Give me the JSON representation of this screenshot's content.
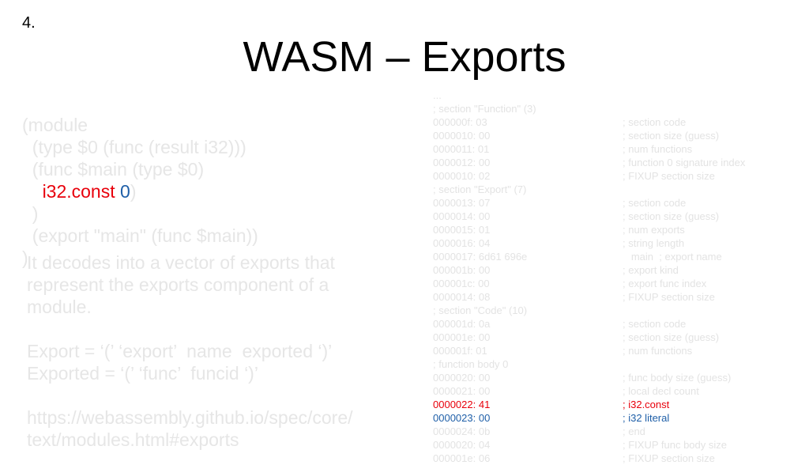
{
  "slide_number": "4.",
  "title": "WASM – Exports",
  "left": {
    "code": [
      "(module",
      "  (type $0 (func (result i32)))",
      "  (func $main (type $0)",
      "    ",
      "  )",
      "  (export \"main\" (func $main))",
      ")"
    ],
    "highlight_const": "i32.const",
    "highlight_zero": "0",
    "highlight_paren": ")",
    "paragraph1": [
      "It decodes into a vector of exports that",
      "represent the exports component of a",
      "module."
    ],
    "grammar": [
      "Export = ‘(’ ‘export’  name  exported ‘)’",
      "Exported = ‘(’ ‘func’  funcid ‘)’"
    ],
    "link": [
      "https://webassembly.github.io/spec/core/",
      "text/modules.html#exports"
    ]
  },
  "right": {
    "rows": [
      {
        "addr": "...",
        "cmt": ""
      },
      {
        "addr": "; section \"Function\" (3)",
        "cmt": ""
      },
      {
        "addr": "000000f: 03",
        "cmt": "; section code"
      },
      {
        "addr": "0000010: 00",
        "cmt": "; section size (guess)"
      },
      {
        "addr": "0000011: 01",
        "cmt": "; num functions"
      },
      {
        "addr": "0000012: 00",
        "cmt": "; function 0 signature index"
      },
      {
        "addr": "0000010: 02",
        "cmt": "; FIXUP section size"
      },
      {
        "addr": "; section \"Export\" (7)",
        "cmt": ""
      },
      {
        "addr": "0000013: 07",
        "cmt": "; section code"
      },
      {
        "addr": "0000014: 00",
        "cmt": "; section size (guess)"
      },
      {
        "addr": "0000015: 01",
        "cmt": "; num exports"
      },
      {
        "addr": "0000016: 04",
        "cmt": "; string length"
      },
      {
        "addr": "0000017: 6d61 696e",
        "cmt": "   main  ; export name"
      },
      {
        "addr": "000001b: 00",
        "cmt": "; export kind"
      },
      {
        "addr": "000001c: 00",
        "cmt": "; export func index"
      },
      {
        "addr": "0000014: 08",
        "cmt": "; FIXUP section size"
      },
      {
        "addr": "; section \"Code\" (10)",
        "cmt": ""
      },
      {
        "addr": "000001d: 0a",
        "cmt": "; section code"
      },
      {
        "addr": "000001e: 00",
        "cmt": "; section size (guess)"
      },
      {
        "addr": "000001f: 01",
        "cmt": "; num functions"
      },
      {
        "addr": "; function body 0",
        "cmt": ""
      },
      {
        "addr": "0000020: 00",
        "cmt": "; func body size (guess)"
      },
      {
        "addr": "0000021: 00",
        "cmt": "; local decl count"
      },
      {
        "addr": "0000022: 41",
        "cmt": "; i32.const"
      },
      {
        "addr": "0000023: 00",
        "cmt": "; i32 literal"
      },
      {
        "addr": "0000024: 0b",
        "cmt": "; end"
      },
      {
        "addr": "0000020: 04",
        "cmt": "; FIXUP func body size"
      },
      {
        "addr": "000001e: 06",
        "cmt": "; FIXUP section size"
      }
    ],
    "highlight_red_index": 23,
    "highlight_blue_index": 24
  },
  "colors": {
    "faded_text": "#e6e6e6",
    "highlight_red": "#e8000b",
    "highlight_blue": "#1f5fa8"
  }
}
